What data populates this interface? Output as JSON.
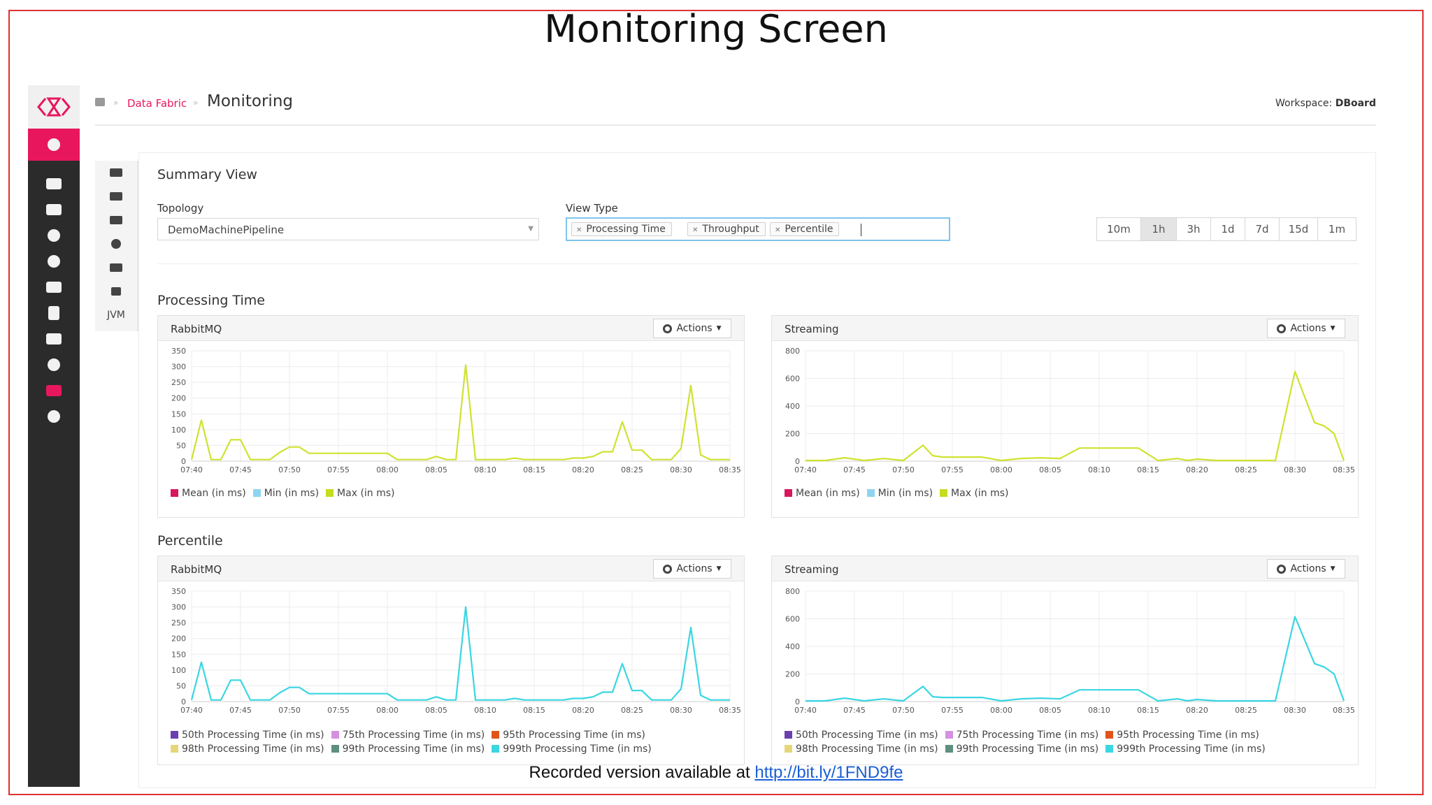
{
  "slide": {
    "title": "Monitoring Screen",
    "footer_text": "Recorded version available at",
    "footer_link": "http://bit.ly/1FND9fe"
  },
  "sidenav": {
    "items": [
      "user-icon",
      "chat-icon",
      "mail-icon",
      "gear-icon",
      "bell-icon",
      "upload-icon",
      "document-icon",
      "users-icon",
      "cogs-icon",
      "area-chart-icon",
      "dashboard-icon"
    ],
    "active_index": 0,
    "accent_color": "#e8175d"
  },
  "header": {
    "breadcrumb_home": "home-icon",
    "breadcrumb_link": "Data Fabric",
    "page_title": "Monitoring",
    "workspace_label": "Workspace:",
    "workspace_value": "DBoard"
  },
  "subnav": {
    "items": [
      "list-icon",
      "topology-icon",
      "card-icon",
      "gauge-icon",
      "storage-icon",
      "bar-chart-icon"
    ],
    "jvm_label": "JVM"
  },
  "summary": {
    "title": "Summary View",
    "topology_label": "Topology",
    "topology_value": "DemoMachinePipeline",
    "view_type_label": "View Type",
    "view_types": [
      "Processing Time",
      "Throughput",
      "Percentile"
    ],
    "time_ranges": [
      "10m",
      "1h",
      "3h",
      "1d",
      "7d",
      "15d",
      "1m"
    ],
    "active_range": "1h"
  },
  "sections": {
    "processing_time": "Processing Time",
    "percentile": "Percentile"
  },
  "actions_label": "Actions",
  "chart_data": [
    {
      "type": "line",
      "title": "RabbitMQ",
      "section": "Processing Time",
      "x_ticks": [
        "07:40",
        "07:45",
        "07:50",
        "07:55",
        "08:00",
        "08:05",
        "08:10",
        "08:15",
        "08:20",
        "08:25",
        "08:30",
        "08:35"
      ],
      "xlim": [
        0,
        55
      ],
      "y_ticks": [
        0,
        50,
        100,
        150,
        200,
        250,
        300,
        350
      ],
      "ylim": [
        0,
        350
      ],
      "legend": [
        {
          "name": "Mean (in ms)",
          "color": "#d8175d"
        },
        {
          "name": "Min (in ms)",
          "color": "#8fd4f0"
        },
        {
          "name": "Max (in ms)",
          "color": "#c6dc1e"
        }
      ],
      "series": [
        {
          "name": "Max (in ms)",
          "color": "#cfe230",
          "x": [
            0,
            1,
            2,
            3,
            4,
            5,
            6,
            7,
            8,
            9,
            10,
            11,
            12,
            13,
            14,
            15,
            16,
            17,
            18,
            19,
            20,
            21,
            22,
            23,
            24,
            25,
            26,
            27,
            28,
            29,
            30,
            31,
            32,
            33,
            34,
            35,
            36,
            37,
            38,
            39,
            40,
            41,
            42,
            43,
            44,
            45,
            46,
            47,
            48,
            49,
            50,
            51,
            52,
            53,
            54,
            55
          ],
          "y": [
            5,
            130,
            5,
            5,
            68,
            68,
            5,
            5,
            5,
            28,
            45,
            45,
            25,
            25,
            25,
            25,
            25,
            25,
            25,
            25,
            25,
            5,
            5,
            5,
            5,
            15,
            5,
            5,
            305,
            5,
            5,
            5,
            5,
            10,
            5,
            5,
            5,
            5,
            5,
            10,
            10,
            15,
            30,
            30,
            125,
            35,
            35,
            5,
            5,
            5,
            40,
            240,
            20,
            5,
            5,
            5
          ]
        }
      ]
    },
    {
      "type": "line",
      "title": "Streaming",
      "section": "Processing Time",
      "x_ticks": [
        "07:40",
        "07:45",
        "07:50",
        "07:55",
        "08:00",
        "08:05",
        "08:10",
        "08:15",
        "08:20",
        "08:25",
        "08:30",
        "08:35"
      ],
      "xlim": [
        0,
        55
      ],
      "y_ticks": [
        0,
        200,
        400,
        600,
        800
      ],
      "ylim": [
        0,
        800
      ],
      "legend": [
        {
          "name": "Mean (in ms)",
          "color": "#d8175d"
        },
        {
          "name": "Min (in ms)",
          "color": "#8fd4f0"
        },
        {
          "name": "Max (in ms)",
          "color": "#c6dc1e"
        }
      ],
      "series": [
        {
          "name": "Max (in ms)",
          "color": "#cfe230",
          "x": [
            0,
            2,
            4,
            6,
            8,
            10,
            12,
            13,
            14,
            16,
            18,
            20,
            22,
            24,
            26,
            28,
            29,
            30,
            32,
            34,
            36,
            38,
            39,
            40,
            42,
            44,
            46,
            48,
            50,
            52,
            53,
            54,
            55
          ],
          "y": [
            5,
            5,
            25,
            5,
            20,
            5,
            115,
            40,
            30,
            30,
            30,
            5,
            20,
            25,
            20,
            95,
            95,
            95,
            95,
            95,
            5,
            20,
            5,
            15,
            5,
            5,
            5,
            5,
            650,
            280,
            255,
            200,
            5
          ]
        }
      ]
    },
    {
      "type": "line",
      "title": "RabbitMQ",
      "section": "Percentile",
      "x_ticks": [
        "07:40",
        "07:45",
        "07:50",
        "07:55",
        "08:00",
        "08:05",
        "08:10",
        "08:15",
        "08:20",
        "08:25",
        "08:30",
        "08:35"
      ],
      "xlim": [
        0,
        55
      ],
      "y_ticks": [
        0,
        50,
        100,
        150,
        200,
        250,
        300,
        350
      ],
      "ylim": [
        0,
        350
      ],
      "legend": [
        {
          "name": "50th Processing Time (in ms)",
          "color": "#6a3fb0"
        },
        {
          "name": "75th Processing Time (in ms)",
          "color": "#d590e0"
        },
        {
          "name": "95th Processing Time (in ms)",
          "color": "#e0541a"
        },
        {
          "name": "98th Processing Time (in ms)",
          "color": "#e6d67a"
        },
        {
          "name": "99th Processing Time (in ms)",
          "color": "#5f8f7e"
        },
        {
          "name": "999th Processing Time (in ms)",
          "color": "#3ad6e2"
        }
      ],
      "series": [
        {
          "name": "999th Processing Time (in ms)",
          "color": "#3ad6e2",
          "x": [
            0,
            1,
            2,
            3,
            4,
            5,
            6,
            7,
            8,
            9,
            10,
            11,
            12,
            13,
            14,
            15,
            16,
            17,
            18,
            19,
            20,
            21,
            22,
            23,
            24,
            25,
            26,
            27,
            28,
            29,
            30,
            31,
            32,
            33,
            34,
            35,
            36,
            37,
            38,
            39,
            40,
            41,
            42,
            43,
            44,
            45,
            46,
            47,
            48,
            49,
            50,
            51,
            52,
            53,
            54,
            55
          ],
          "y": [
            5,
            125,
            5,
            5,
            68,
            68,
            5,
            5,
            5,
            28,
            45,
            45,
            25,
            25,
            25,
            25,
            25,
            25,
            25,
            25,
            25,
            5,
            5,
            5,
            5,
            15,
            5,
            5,
            300,
            5,
            5,
            5,
            5,
            10,
            5,
            5,
            5,
            5,
            5,
            10,
            10,
            15,
            30,
            30,
            120,
            35,
            35,
            5,
            5,
            5,
            40,
            235,
            20,
            5,
            5,
            5
          ]
        }
      ]
    },
    {
      "type": "line",
      "title": "Streaming",
      "section": "Percentile",
      "x_ticks": [
        "07:40",
        "07:45",
        "07:50",
        "07:55",
        "08:00",
        "08:05",
        "08:10",
        "08:15",
        "08:20",
        "08:25",
        "08:30",
        "08:35"
      ],
      "xlim": [
        0,
        55
      ],
      "y_ticks": [
        0,
        200,
        400,
        600,
        800
      ],
      "ylim": [
        0,
        800
      ],
      "legend": [
        {
          "name": "50th Processing Time (in ms)",
          "color": "#6a3fb0"
        },
        {
          "name": "75th Processing Time (in ms)",
          "color": "#d590e0"
        },
        {
          "name": "95th Processing Time (in ms)",
          "color": "#e0541a"
        },
        {
          "name": "98th Processing Time (in ms)",
          "color": "#e6d67a"
        },
        {
          "name": "99th Processing Time (in ms)",
          "color": "#5f8f7e"
        },
        {
          "name": "999th Processing Time (in ms)",
          "color": "#3ad6e2"
        }
      ],
      "series": [
        {
          "name": "999th Processing Time (in ms)",
          "color": "#3ad6e2",
          "x": [
            0,
            2,
            4,
            6,
            8,
            10,
            12,
            13,
            14,
            16,
            18,
            20,
            22,
            24,
            26,
            28,
            29,
            30,
            32,
            34,
            36,
            38,
            39,
            40,
            42,
            44,
            46,
            48,
            50,
            52,
            53,
            54,
            55
          ],
          "y": [
            5,
            5,
            25,
            5,
            20,
            5,
            110,
            35,
            30,
            30,
            30,
            5,
            20,
            25,
            20,
            85,
            85,
            85,
            85,
            85,
            5,
            20,
            5,
            15,
            5,
            5,
            5,
            5,
            615,
            275,
            250,
            200,
            5
          ]
        }
      ]
    }
  ]
}
